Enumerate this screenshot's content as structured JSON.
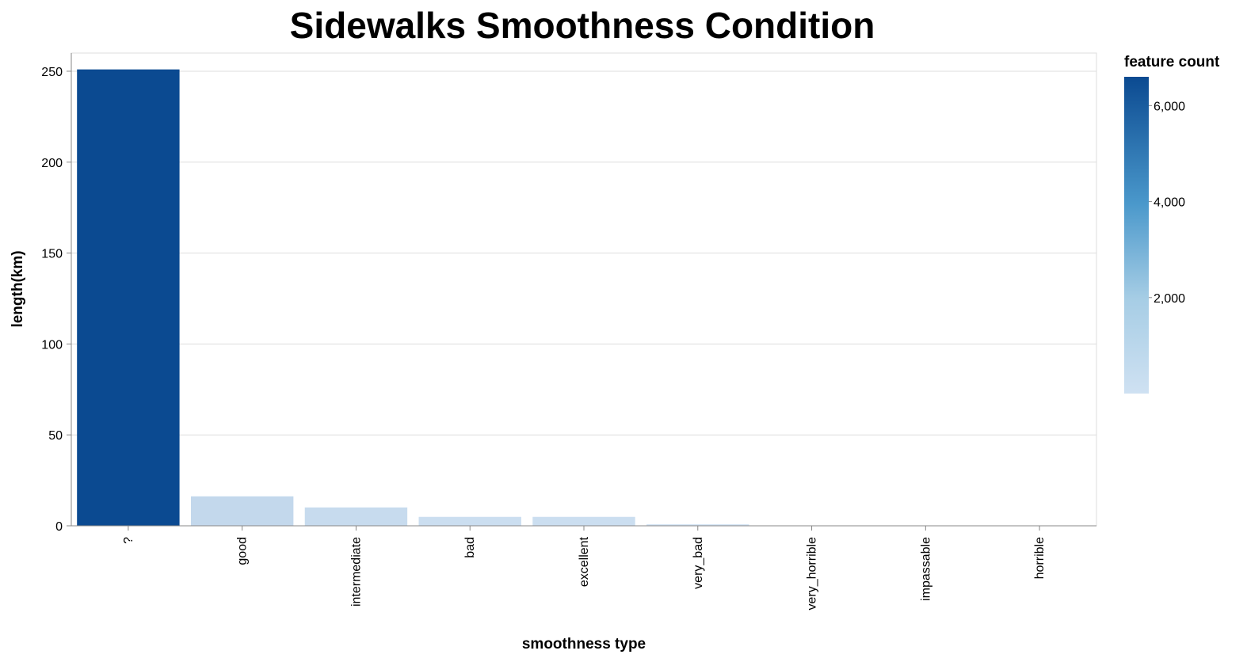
{
  "chart_data": {
    "type": "bar",
    "title": "Sidewalks Smoothness Condition",
    "xlabel": "smoothness type",
    "ylabel": "length(km)",
    "categories": [
      "?",
      "good",
      "intermediate",
      "bad",
      "excellent",
      "very_bad",
      "very_horrible",
      "impassable",
      "horrible"
    ],
    "values": [
      251,
      16.2,
      10.1,
      4.9,
      4.9,
      0.8,
      0.2,
      0.1,
      0.1
    ],
    "feature_counts": [
      6600,
      390,
      260,
      140,
      120,
      25,
      5,
      3,
      2
    ],
    "ylim": [
      0,
      260
    ],
    "yticks": [
      0,
      50,
      100,
      150,
      200,
      250
    ],
    "grid": true,
    "legend": {
      "title": "feature count",
      "placement": "right",
      "ticks": [
        {
          "value": 2000,
          "label": "2,000"
        },
        {
          "value": 4000,
          "label": "4,000"
        },
        {
          "value": 6000,
          "label": "6,000"
        }
      ],
      "domain": [
        0,
        6600
      ],
      "color_low": "#cfe1f2",
      "color_high": "#0b4a91"
    }
  }
}
